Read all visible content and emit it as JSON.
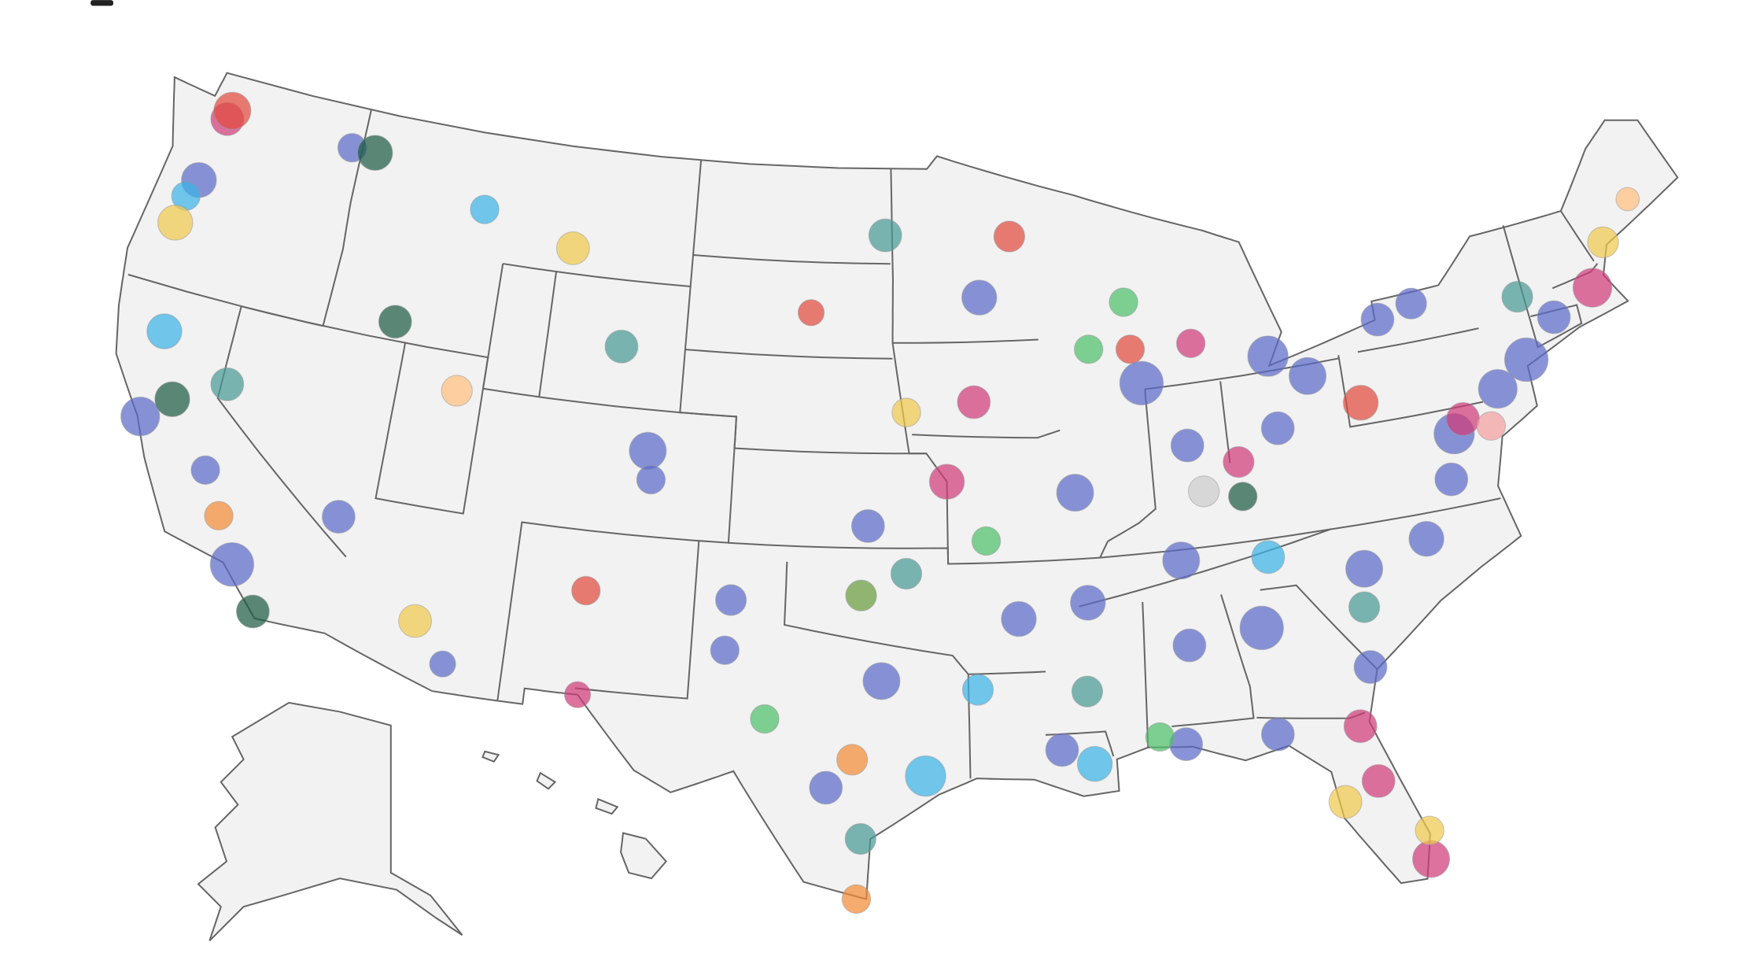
{
  "bubbles": [
    {
      "lon": -122.3,
      "lat": 47.6,
      "value": 40,
      "color": "#d03c7a"
    },
    {
      "lon": -122.2,
      "lat": 47.9,
      "value": 50,
      "color": "#e04b3f"
    },
    {
      "lon": -122.7,
      "lat": 45.5,
      "value": 45,
      "color": "#5b6bc9"
    },
    {
      "lon": -117.4,
      "lat": 47.7,
      "value": 30,
      "color": "#5b6bc9"
    },
    {
      "lon": -116.5,
      "lat": 47.7,
      "value": 45,
      "color": "#1f5c45"
    },
    {
      "lon": -123.0,
      "lat": 44.9,
      "value": 30,
      "color": "#3cb3e6"
    },
    {
      "lon": -123.1,
      "lat": 44.0,
      "value": 45,
      "color": "#f0c94e"
    },
    {
      "lon": -122.4,
      "lat": 37.8,
      "value": 55,
      "color": "#5b6bc9"
    },
    {
      "lon": -121.5,
      "lat": 38.6,
      "value": 45,
      "color": "#1f5c45"
    },
    {
      "lon": -122.4,
      "lat": 40.6,
      "value": 45,
      "color": "#3cb3e6"
    },
    {
      "lon": -118.2,
      "lat": 34.0,
      "value": 70,
      "color": "#5b6bc9"
    },
    {
      "lon": -117.2,
      "lat": 32.7,
      "value": 40,
      "color": "#1f5c45"
    },
    {
      "lon": -115.1,
      "lat": 36.2,
      "value": 40,
      "color": "#5b6bc9"
    },
    {
      "lon": -119.8,
      "lat": 39.5,
      "value": 40,
      "color": "#4a9a94"
    },
    {
      "lon": -119.0,
      "lat": 35.4,
      "value": 30,
      "color": "#f28c38"
    },
    {
      "lon": -119.8,
      "lat": 36.7,
      "value": 30,
      "color": "#5b6bc9"
    },
    {
      "lon": -114.5,
      "lat": 42.6,
      "value": 40,
      "color": "#1f5c45"
    },
    {
      "lon": -111.9,
      "lat": 40.8,
      "value": 35,
      "color": "#ffbf80"
    },
    {
      "lon": -112.0,
      "lat": 33.4,
      "value": 40,
      "color": "#f0c94e"
    },
    {
      "lon": -110.9,
      "lat": 32.2,
      "value": 25,
      "color": "#5b6bc9"
    },
    {
      "lon": -106.6,
      "lat": 35.1,
      "value": 30,
      "color": "#e04b3f"
    },
    {
      "lon": -105.0,
      "lat": 39.7,
      "value": 50,
      "color": "#5b6bc9"
    },
    {
      "lon": -104.8,
      "lat": 38.8,
      "value": 30,
      "color": "#5b6bc9"
    },
    {
      "lon": -108.5,
      "lat": 45.8,
      "value": 40,
      "color": "#f0c94e"
    },
    {
      "lon": -112.0,
      "lat": 46.6,
      "value": 30,
      "color": "#3cb3e6"
    },
    {
      "lon": -106.3,
      "lat": 42.9,
      "value": 40,
      "color": "#4a9a94"
    },
    {
      "lon": -106.5,
      "lat": 31.8,
      "value": 25,
      "color": "#d03c7a"
    },
    {
      "lon": -101.9,
      "lat": 33.6,
      "value": 30,
      "color": "#5b6bc9"
    },
    {
      "lon": -101.8,
      "lat": 35.2,
      "value": 35,
      "color": "#5b6bc9"
    },
    {
      "lon": -97.5,
      "lat": 35.5,
      "value": 35,
      "color": "#6a9c3e"
    },
    {
      "lon": -96.0,
      "lat": 36.2,
      "value": 35,
      "color": "#4a9a94"
    },
    {
      "lon": -96.8,
      "lat": 32.8,
      "value": 50,
      "color": "#5b6bc9"
    },
    {
      "lon": -97.7,
      "lat": 30.3,
      "value": 35,
      "color": "#f28c38"
    },
    {
      "lon": -98.5,
      "lat": 29.4,
      "value": 40,
      "color": "#5b6bc9"
    },
    {
      "lon": -95.4,
      "lat": 29.8,
      "value": 60,
      "color": "#3cb3e6"
    },
    {
      "lon": -97.4,
      "lat": 27.8,
      "value": 35,
      "color": "#4a9a94"
    },
    {
      "lon": -97.5,
      "lat": 25.9,
      "value": 30,
      "color": "#f28c38"
    },
    {
      "lon": -97.3,
      "lat": 37.7,
      "value": 40,
      "color": "#5b6bc9"
    },
    {
      "lon": -94.6,
      "lat": 39.1,
      "value": 45,
      "color": "#d03c7a"
    },
    {
      "lon": -96.0,
      "lat": 41.3,
      "value": 30,
      "color": "#f0c94e"
    },
    {
      "lon": -93.6,
      "lat": 41.6,
      "value": 40,
      "color": "#d03c7a"
    },
    {
      "lon": -93.3,
      "lat": 44.9,
      "value": 45,
      "color": "#5b6bc9"
    },
    {
      "lon": -92.1,
      "lat": 46.8,
      "value": 35,
      "color": "#e04b3f"
    },
    {
      "lon": -96.8,
      "lat": 46.9,
      "value": 40,
      "color": "#4a9a94"
    },
    {
      "lon": -87.9,
      "lat": 43.0,
      "value": 30,
      "color": "#e04b3f"
    },
    {
      "lon": -89.4,
      "lat": 43.1,
      "value": 30,
      "color": "#4dbf6b"
    },
    {
      "lon": -87.6,
      "lat": 41.9,
      "value": 70,
      "color": "#5b6bc9"
    },
    {
      "lon": -83.0,
      "lat": 42.3,
      "value": 60,
      "color": "#5b6bc9"
    },
    {
      "lon": -85.7,
      "lat": 43.0,
      "value": 30,
      "color": "#d03c7a"
    },
    {
      "lon": -86.2,
      "lat": 39.8,
      "value": 40,
      "color": "#5b6bc9"
    },
    {
      "lon": -90.2,
      "lat": 38.6,
      "value": 50,
      "color": "#5b6bc9"
    },
    {
      "lon": -84.5,
      "lat": 39.1,
      "value": 35,
      "color": "#d03c7a"
    },
    {
      "lon": -83.0,
      "lat": 40.0,
      "value": 40,
      "color": "#5b6bc9"
    },
    {
      "lon": -81.7,
      "lat": 41.5,
      "value": 50,
      "color": "#5b6bc9"
    },
    {
      "lon": -80.0,
      "lat": 40.4,
      "value": 45,
      "color": "#e04b3f"
    },
    {
      "lon": -85.8,
      "lat": 38.3,
      "value": 35,
      "color": "#cccccc"
    },
    {
      "lon": -86.8,
      "lat": 36.2,
      "value": 50,
      "color": "#5b6bc9"
    },
    {
      "lon": -90.0,
      "lat": 35.1,
      "value": 45,
      "color": "#5b6bc9"
    },
    {
      "lon": -84.4,
      "lat": 33.8,
      "value": 70,
      "color": "#5b6bc9"
    },
    {
      "lon": -86.8,
      "lat": 33.5,
      "value": 40,
      "color": "#5b6bc9"
    },
    {
      "lon": -90.1,
      "lat": 30.0,
      "value": 45,
      "color": "#3cb3e6"
    },
    {
      "lon": -91.1,
      "lat": 30.5,
      "value": 40,
      "color": "#5b6bc9"
    },
    {
      "lon": -90.2,
      "lat": 32.3,
      "value": 35,
      "color": "#4a9a94"
    },
    {
      "lon": -80.8,
      "lat": 35.2,
      "value": 50,
      "color": "#5b6bc9"
    },
    {
      "lon": -78.6,
      "lat": 35.8,
      "value": 45,
      "color": "#5b6bc9"
    },
    {
      "lon": -77.4,
      "lat": 37.5,
      "value": 40,
      "color": "#5b6bc9"
    },
    {
      "lon": -77.0,
      "lat": 38.9,
      "value": 60,
      "color": "#5b6bc9"
    },
    {
      "lon": -76.6,
      "lat": 39.3,
      "value": 40,
      "color": "#d03c7a"
    },
    {
      "lon": -75.2,
      "lat": 40.0,
      "value": 55,
      "color": "#5b6bc9"
    },
    {
      "lon": -74.0,
      "lat": 40.7,
      "value": 70,
      "color": "#5b6bc9"
    },
    {
      "lon": -71.1,
      "lat": 42.4,
      "value": 55,
      "color": "#d03c7a"
    },
    {
      "lon": -72.7,
      "lat": 41.8,
      "value": 40,
      "color": "#5b6bc9"
    },
    {
      "lon": -73.8,
      "lat": 42.7,
      "value": 35,
      "color": "#4a9a94"
    },
    {
      "lon": -78.9,
      "lat": 42.9,
      "value": 40,
      "color": "#5b6bc9"
    },
    {
      "lon": -77.6,
      "lat": 43.2,
      "value": 35,
      "color": "#5b6bc9"
    },
    {
      "lon": -70.3,
      "lat": 43.7,
      "value": 35,
      "color": "#f0c94e"
    },
    {
      "lon": -81.7,
      "lat": 30.3,
      "value": 40,
      "color": "#d03c7a"
    },
    {
      "lon": -81.4,
      "lat": 28.5,
      "value": 40,
      "color": "#d03c7a"
    },
    {
      "lon": -82.5,
      "lat": 28.0,
      "value": 40,
      "color": "#f0c94e"
    },
    {
      "lon": -80.2,
      "lat": 25.8,
      "value": 50,
      "color": "#d03c7a"
    },
    {
      "lon": -80.1,
      "lat": 26.7,
      "value": 30,
      "color": "#f0c94e"
    },
    {
      "lon": -81.1,
      "lat": 32.1,
      "value": 40,
      "color": "#5b6bc9"
    },
    {
      "lon": -81.0,
      "lat": 34.0,
      "value": 35,
      "color": "#4a9a94"
    },
    {
      "lon": -83.9,
      "lat": 36.0,
      "value": 40,
      "color": "#3cb3e6"
    },
    {
      "lon": -84.3,
      "lat": 30.4,
      "value": 40,
      "color": "#5b6bc9"
    },
    {
      "lon": -87.2,
      "lat": 30.4,
      "value": 40,
      "color": "#5b6bc9"
    },
    {
      "lon": -88.0,
      "lat": 30.7,
      "value": 30,
      "color": "#4dbf6b"
    },
    {
      "lon": -92.3,
      "lat": 34.7,
      "value": 45,
      "color": "#5b6bc9"
    },
    {
      "lon": -93.7,
      "lat": 32.5,
      "value": 35,
      "color": "#3cb3e6"
    },
    {
      "lon": -84.5,
      "lat": 38.0,
      "value": 30,
      "color": "#1f5c45"
    },
    {
      "lon": -93.3,
      "lat": 37.2,
      "value": 30,
      "color": "#4dbf6b"
    },
    {
      "lon": -100.5,
      "lat": 31.5,
      "value": 30,
      "color": "#4dbf6b"
    },
    {
      "lon": -88.0,
      "lat": 44.5,
      "value": 30,
      "color": "#4dbf6b"
    },
    {
      "lon": -99.5,
      "lat": 44.4,
      "value": 25,
      "color": "#e04b3f"
    },
    {
      "lon": -75.7,
      "lat": 38.9,
      "value": 30,
      "color": "#f4a0a0"
    },
    {
      "lon": -69.0,
      "lat": 44.8,
      "value": 20,
      "color": "#ffbf80"
    }
  ]
}
